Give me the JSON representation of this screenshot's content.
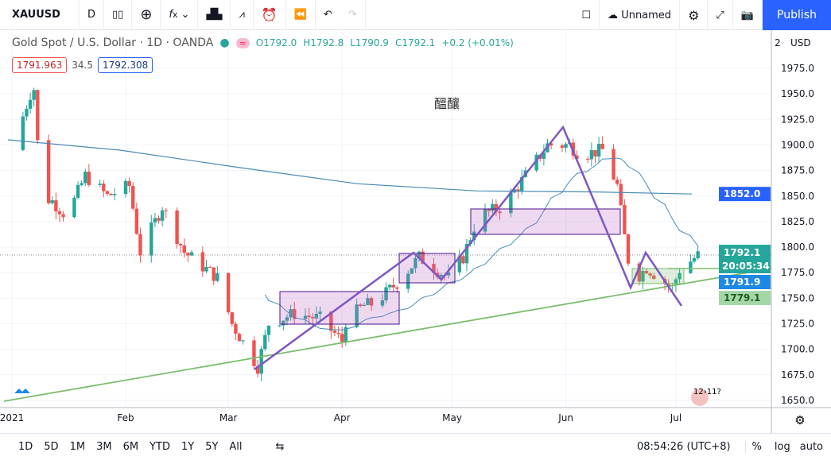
{
  "toolbar": {
    "symbol": "XAUUSD",
    "interval": "D",
    "layout_name": "Unnamed",
    "publish": "Publish",
    "icons": [
      "candles-icon",
      "plus-circle-icon",
      "fx-icon",
      "chevron-down-icon",
      "bar-chart-icon",
      "indicator-icon",
      "alarm-icon",
      "replay-icon",
      "undo-icon",
      "redo-icon"
    ]
  },
  "legend": {
    "title": "Gold Spot / U.S. Dollar · 1D · OANDA",
    "o": "O1792.0",
    "h": "H1792.8",
    "l": "L1790.9",
    "c": "C1792.1",
    "chg": "+0.2 (+0.01%)",
    "ind1": "1791.963",
    "ind2": "34.5",
    "ind3": "1792.308"
  },
  "watermark": "醞釀",
  "currency": "USD",
  "price_axis": [
    "1975.0",
    "1950.0",
    "1925.0",
    "1900.0",
    "1875.0",
    "1850.0",
    "1825.0",
    "1800.0",
    "1775.0",
    "1750.0",
    "1725.0",
    "1700.0",
    "1675.0",
    "1650.0"
  ],
  "price_ticks": [
    1975,
    1950,
    1925,
    1900,
    1875,
    1850,
    1825,
    1800,
    1775,
    1750,
    1725,
    1700,
    1675,
    1650
  ],
  "scale_top": "2",
  "tags": {
    "last": "1792.1",
    "countdown": "20:05:34",
    "ma_short": "1791.9",
    "line": "1779.1",
    "ma_long": "1852.0"
  },
  "time_axis": [
    {
      "label": "2021",
      "day": 0
    },
    {
      "label": "Feb",
      "day": 31
    },
    {
      "label": "Mar",
      "day": 59
    },
    {
      "label": "Apr",
      "day": 90
    },
    {
      "label": "May",
      "day": 120
    },
    {
      "label": "Jun",
      "day": 151
    },
    {
      "label": "Jul",
      "day": 181
    }
  ],
  "price_path": [
    [
      0,
      1895
    ],
    [
      5,
      1950
    ],
    [
      6,
      1955
    ],
    [
      8,
      1850
    ],
    [
      11,
      1845
    ],
    [
      15,
      1830
    ],
    [
      20,
      1870
    ],
    [
      26,
      1850
    ],
    [
      32,
      1860
    ],
    [
      35,
      1795
    ],
    [
      41,
      1840
    ],
    [
      47,
      1795
    ],
    [
      56,
      1770
    ],
    [
      60,
      1725
    ],
    [
      67,
      1683
    ],
    [
      70,
      1725
    ],
    [
      77,
      1735
    ],
    [
      84,
      1730
    ],
    [
      90,
      1708
    ],
    [
      91,
      1728
    ],
    [
      96,
      1743
    ],
    [
      99,
      1745
    ],
    [
      105,
      1765
    ],
    [
      111,
      1790
    ],
    [
      119,
      1770
    ],
    [
      123,
      1790
    ],
    [
      127,
      1830
    ],
    [
      134,
      1840
    ],
    [
      140,
      1870
    ],
    [
      146,
      1900
    ],
    [
      152,
      1900
    ],
    [
      155,
      1890
    ],
    [
      161,
      1895
    ],
    [
      165,
      1860
    ],
    [
      167,
      1810
    ],
    [
      169,
      1765
    ],
    [
      173,
      1780
    ],
    [
      180,
      1760
    ],
    [
      182,
      1778
    ],
    [
      187,
      1792
    ]
  ],
  "event": "12›11?",
  "colors": {
    "up": "#26a69a",
    "down": "#ef5350",
    "ma_long": "#4a8bb5",
    "trend": "#7cbd6f",
    "zigzag": "#7e57c2",
    "box": "rgba(186,104,200,0.25)"
  },
  "bottom": {
    "ranges": [
      "1D",
      "5D",
      "1M",
      "3M",
      "6M",
      "YTD",
      "1Y",
      "5Y",
      "All"
    ],
    "time": "08:54:26 (UTC+8)",
    "pct": "%",
    "log": "log",
    "auto": "auto"
  }
}
